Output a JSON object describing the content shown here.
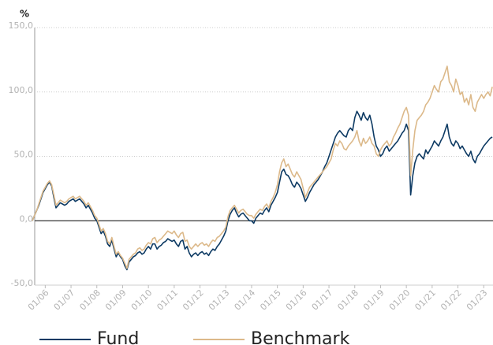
{
  "chart_data": {
    "type": "line",
    "ylabel": "%",
    "ylim": [
      -50,
      150
    ],
    "yticks": [
      {
        "value": -50,
        "label": "-50,0"
      },
      {
        "value": 0,
        "label": "0,0"
      },
      {
        "value": 50,
        "label": "50,0"
      },
      {
        "value": 100,
        "label": "100,0"
      },
      {
        "value": 150,
        "label": "150,0"
      }
    ],
    "grid": true,
    "xticks": [
      "01/06",
      "01/07",
      "01/08",
      "01/09",
      "01/10",
      "01/11",
      "01/12",
      "01/13",
      "01/14",
      "01/15",
      "01/16",
      "01/17",
      "01/18",
      "01/19",
      "01/20",
      "01/21",
      "01/22",
      "01/23"
    ],
    "x": [
      "07/05",
      "08/05",
      "09/05",
      "10/05",
      "11/05",
      "12/05",
      "01/06",
      "02/06",
      "03/06",
      "04/06",
      "05/06",
      "06/06",
      "07/06",
      "08/06",
      "09/06",
      "10/06",
      "11/06",
      "12/06",
      "01/07",
      "02/07",
      "03/07",
      "04/07",
      "05/07",
      "06/07",
      "07/07",
      "08/07",
      "09/07",
      "10/07",
      "11/07",
      "12/07",
      "01/08",
      "02/08",
      "03/08",
      "04/08",
      "05/08",
      "06/08",
      "07/08",
      "08/08",
      "09/08",
      "10/08",
      "11/08",
      "12/08",
      "01/09",
      "02/09",
      "03/09",
      "04/09",
      "05/09",
      "06/09",
      "07/09",
      "08/09",
      "09/09",
      "10/09",
      "11/09",
      "12/09",
      "01/10",
      "02/10",
      "03/10",
      "04/10",
      "05/10",
      "06/10",
      "07/10",
      "08/10",
      "09/10",
      "10/10",
      "11/10",
      "12/10",
      "01/11",
      "02/11",
      "03/11",
      "04/11",
      "05/11",
      "06/11",
      "07/11",
      "08/11",
      "09/11",
      "10/11",
      "11/11",
      "12/11",
      "01/12",
      "02/12",
      "03/12",
      "04/12",
      "05/12",
      "06/12",
      "07/12",
      "08/12",
      "09/12",
      "10/12",
      "11/12",
      "12/12",
      "01/13",
      "02/13",
      "03/13",
      "04/13",
      "05/13",
      "06/13",
      "07/13",
      "08/13",
      "09/13",
      "10/13",
      "11/13",
      "12/13",
      "01/14",
      "02/14",
      "03/14",
      "04/14",
      "05/14",
      "06/14",
      "07/14",
      "08/14",
      "09/14",
      "10/14",
      "11/14",
      "12/14",
      "01/15",
      "02/15",
      "03/15",
      "04/15",
      "05/15",
      "06/15",
      "07/15",
      "08/15",
      "09/15",
      "10/15",
      "11/15",
      "12/15",
      "01/16",
      "02/16",
      "03/16",
      "04/16",
      "05/16",
      "06/16",
      "07/16",
      "08/16",
      "09/16",
      "10/16",
      "11/16",
      "12/16",
      "01/17",
      "02/17",
      "03/17",
      "04/17",
      "05/17",
      "06/17",
      "07/17",
      "08/17",
      "09/17",
      "10/17",
      "11/17",
      "12/17",
      "01/18",
      "02/18",
      "03/18",
      "04/18",
      "05/18",
      "06/18",
      "07/18",
      "08/18",
      "09/18",
      "10/18",
      "11/18",
      "12/18",
      "01/19",
      "02/19",
      "03/19",
      "04/19",
      "05/19",
      "06/19",
      "07/19",
      "08/19",
      "09/19",
      "10/19",
      "11/19",
      "12/19",
      "01/20",
      "02/20",
      "03/20",
      "04/20",
      "05/20",
      "06/20",
      "07/20",
      "08/20",
      "09/20",
      "10/20",
      "11/20",
      "12/20",
      "01/21",
      "02/21",
      "03/21",
      "04/21",
      "05/21",
      "06/21",
      "07/21",
      "08/21",
      "09/21",
      "10/21",
      "11/21",
      "12/21",
      "01/22",
      "02/22",
      "03/22",
      "04/22",
      "05/22",
      "06/22",
      "07/22",
      "08/22",
      "09/22",
      "10/22",
      "11/22",
      "12/22",
      "01/23",
      "02/23",
      "03/23",
      "04/23",
      "05/23"
    ],
    "series": [
      {
        "name": "Fund",
        "color": "#0d3a63",
        "values": [
          0,
          4,
          8,
          12,
          17,
          22,
          25,
          28,
          30,
          27,
          18,
          10,
          12,
          14,
          13,
          12,
          13,
          15,
          16,
          17,
          15,
          16,
          17,
          15,
          13,
          10,
          12,
          9,
          6,
          2,
          0,
          -5,
          -10,
          -8,
          -12,
          -18,
          -20,
          -15,
          -22,
          -28,
          -25,
          -28,
          -30,
          -35,
          -38,
          -32,
          -30,
          -28,
          -27,
          -25,
          -24,
          -26,
          -25,
          -22,
          -20,
          -22,
          -18,
          -18,
          -22,
          -20,
          -19,
          -17,
          -16,
          -14,
          -15,
          -16,
          -15,
          -18,
          -20,
          -16,
          -15,
          -22,
          -20,
          -25,
          -28,
          -26,
          -25,
          -27,
          -25,
          -24,
          -26,
          -25,
          -27,
          -24,
          -22,
          -23,
          -20,
          -18,
          -15,
          -12,
          -8,
          0,
          5,
          8,
          10,
          6,
          3,
          5,
          6,
          4,
          2,
          0,
          0,
          -2,
          2,
          4,
          6,
          5,
          8,
          10,
          7,
          12,
          15,
          18,
          22,
          30,
          38,
          40,
          36,
          35,
          32,
          28,
          26,
          30,
          28,
          25,
          20,
          15,
          18,
          22,
          25,
          28,
          30,
          32,
          35,
          38,
          42,
          45,
          50,
          55,
          60,
          65,
          68,
          70,
          68,
          66,
          65,
          70,
          72,
          70,
          80,
          85,
          82,
          78,
          84,
          80,
          78,
          82,
          75,
          65,
          58,
          55,
          50,
          52,
          56,
          58,
          54,
          56,
          58,
          60,
          62,
          65,
          68,
          70,
          75,
          70,
          20,
          35,
          45,
          50,
          52,
          50,
          48,
          55,
          52,
          55,
          58,
          62,
          60,
          58,
          62,
          65,
          70,
          75,
          65,
          60,
          58,
          62,
          60,
          56,
          58,
          55,
          52,
          50,
          54,
          48,
          45,
          50,
          52,
          55,
          58,
          60,
          62,
          64,
          65
        ]
      },
      {
        "name": "Benchmark",
        "color": "#dcb98a",
        "values": [
          0,
          4,
          8,
          13,
          18,
          23,
          26,
          29,
          31,
          28,
          20,
          12,
          14,
          16,
          15,
          14,
          15,
          17,
          18,
          19,
          17,
          18,
          19,
          17,
          15,
          12,
          14,
          11,
          8,
          4,
          2,
          -3,
          -8,
          -6,
          -10,
          -16,
          -18,
          -13,
          -20,
          -26,
          -24,
          -27,
          -29,
          -33,
          -37,
          -30,
          -28,
          -26,
          -25,
          -22,
          -21,
          -23,
          -22,
          -19,
          -17,
          -18,
          -14,
          -13,
          -17,
          -15,
          -14,
          -12,
          -10,
          -8,
          -9,
          -10,
          -8,
          -11,
          -13,
          -10,
          -9,
          -16,
          -15,
          -20,
          -22,
          -20,
          -18,
          -20,
          -18,
          -17,
          -19,
          -18,
          -20,
          -17,
          -15,
          -16,
          -13,
          -12,
          -10,
          -8,
          -5,
          3,
          8,
          10,
          12,
          9,
          6,
          8,
          9,
          7,
          5,
          4,
          4,
          2,
          5,
          7,
          9,
          8,
          11,
          13,
          10,
          15,
          18,
          22,
          28,
          38,
          45,
          48,
          42,
          44,
          40,
          36,
          34,
          38,
          35,
          32,
          25,
          18,
          22,
          26,
          28,
          30,
          32,
          34,
          36,
          38,
          40,
          42,
          45,
          48,
          55,
          60,
          58,
          62,
          60,
          56,
          55,
          58,
          60,
          62,
          65,
          70,
          62,
          58,
          64,
          60,
          62,
          65,
          60,
          58,
          52,
          50,
          55,
          58,
          60,
          62,
          58,
          60,
          65,
          68,
          72,
          75,
          80,
          85,
          88,
          82,
          35,
          55,
          70,
          78,
          80,
          82,
          85,
          90,
          92,
          95,
          100,
          105,
          102,
          100,
          108,
          110,
          115,
          120,
          108,
          105,
          100,
          110,
          105,
          98,
          100,
          92,
          95,
          90,
          98,
          88,
          85,
          92,
          95,
          98,
          95,
          98,
          100,
          97,
          104
        ]
      }
    ]
  }
}
